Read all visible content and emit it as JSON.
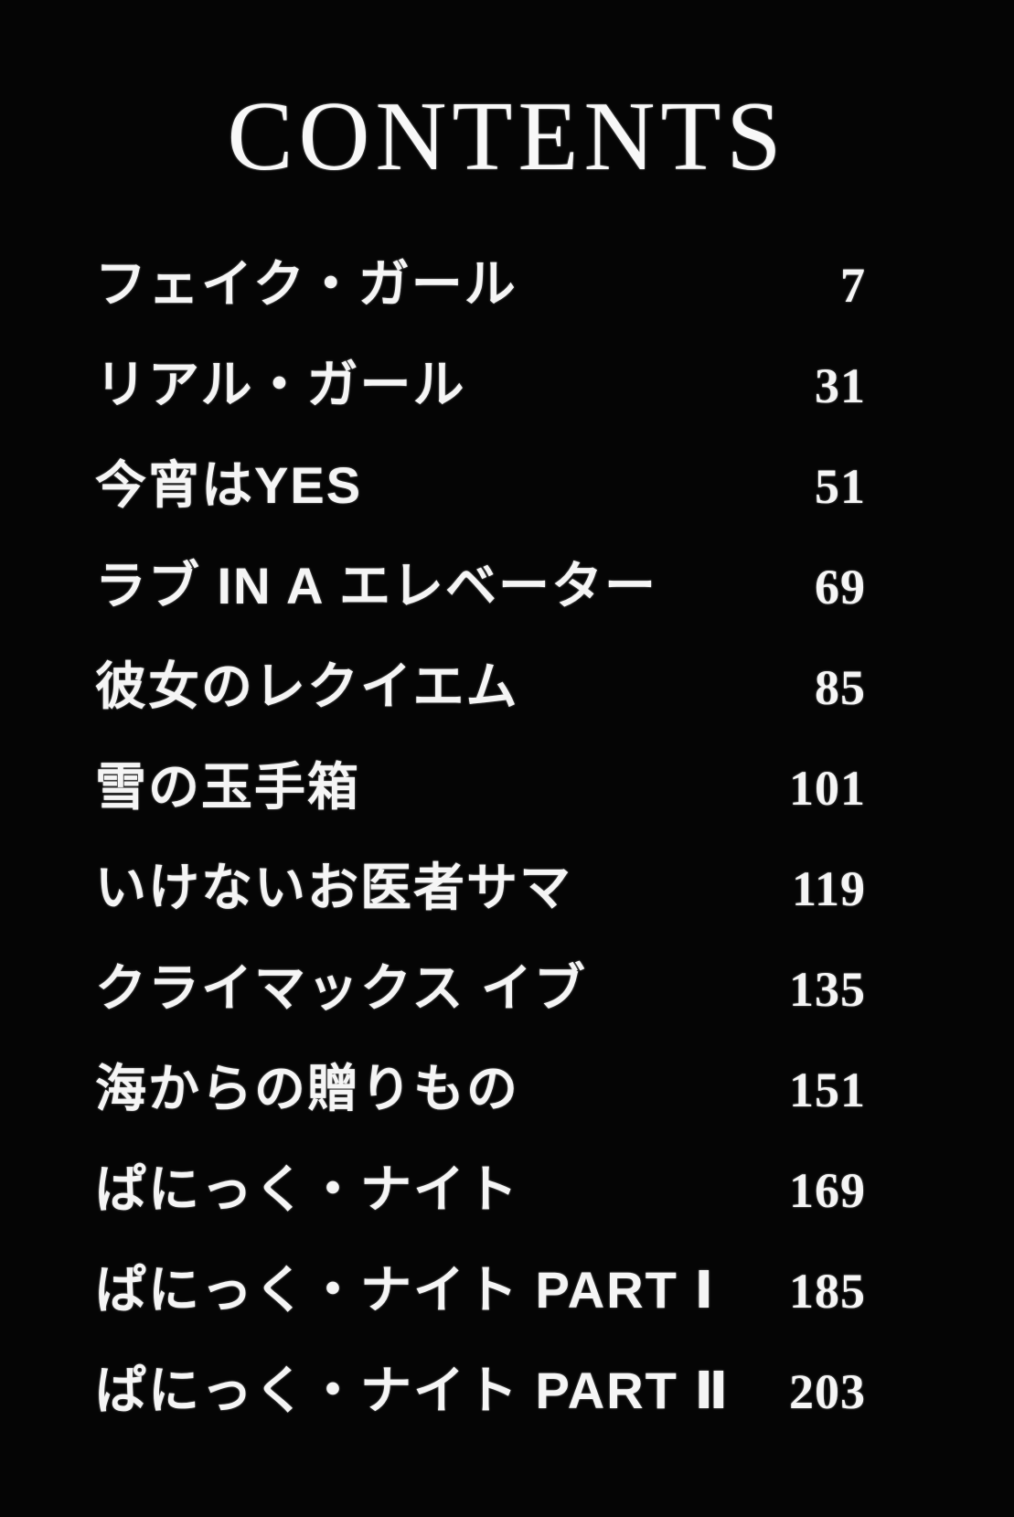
{
  "page": {
    "title": "CONTENTS",
    "background_color": "#050505",
    "text_color": "#f5f5f5"
  },
  "toc": {
    "entries": [
      {
        "title": "フェイク・ガール",
        "page": "7"
      },
      {
        "title": "リアル・ガール",
        "page": "31"
      },
      {
        "title": "今宵はYES",
        "page": "51"
      },
      {
        "title": "ラブ IN A エレベーター",
        "page": "69"
      },
      {
        "title": "彼女のレクイエム",
        "page": "85"
      },
      {
        "title": "雪の玉手箱",
        "page": "101"
      },
      {
        "title": "いけないお医者サマ",
        "page": "119"
      },
      {
        "title": "クライマックス イブ",
        "page": "135"
      },
      {
        "title": "海からの贈りもの",
        "page": "151"
      },
      {
        "title": "ぱにっく・ナイト",
        "page": "169"
      },
      {
        "title": "ぱにっく・ナイト PART Ⅰ",
        "page": "185"
      },
      {
        "title": "ぱにっく・ナイト PART Ⅱ",
        "page": "203"
      }
    ]
  }
}
